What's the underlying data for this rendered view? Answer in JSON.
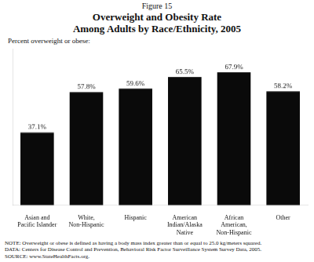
{
  "chart_data": {
    "type": "bar",
    "annotations": [
      "Figure 15"
    ],
    "title": [
      "Overweight and Obesity Rate",
      "Among Adults by Race/Ethnicity, 2005"
    ],
    "ylabel": "Percent overweight or obese:",
    "categories": [
      "Asian and\nPacific Islander",
      "White,\nNon-Hispanic",
      "Hispanic",
      "American\nIndian/Alaska\nNative",
      "African\nAmerican,\nNon-Hispanic",
      "Other"
    ],
    "values": [
      37.1,
      57.8,
      59.6,
      65.5,
      67.9,
      58.2
    ],
    "value_labels": [
      "37.1%",
      "57.8%",
      "59.6%",
      "65.5%",
      "67.9%",
      "58.2%"
    ],
    "data_labels": true,
    "color": "#0a0a0a",
    "ylim": [
      0,
      80
    ],
    "grid": false,
    "tick_labels": "x",
    "notes": [
      "NOTE: Overweight or obese is defined as having a body mass index greater than or equal to 25.0 kg/meters squared.",
      "DATA: Centers for Disease Control and Prevention, Behavioral Risk Factor Surveillance System Survey Data, 2005.",
      "SOURCE: www.StateHealthFacts.org."
    ]
  }
}
